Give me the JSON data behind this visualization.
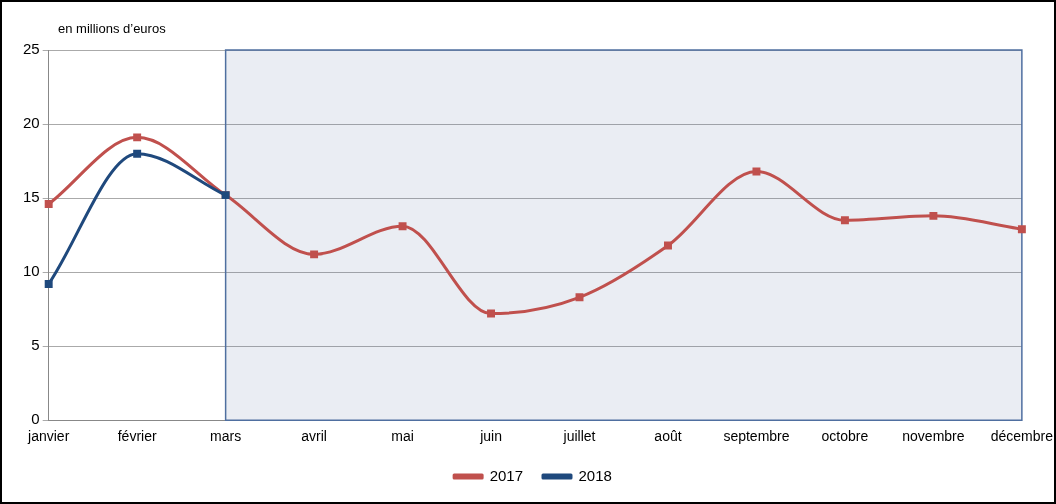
{
  "chart_data": {
    "type": "line",
    "ylabel": "en millions d’euros",
    "categories": [
      "janvier",
      "février",
      "mars",
      "avril",
      "mai",
      "juin",
      "juillet",
      "août",
      "septembre",
      "octobre",
      "novembre",
      "décembre"
    ],
    "series": [
      {
        "name": "2017",
        "color": "#c0504d",
        "values": [
          14.6,
          19.1,
          15.2,
          11.2,
          13.1,
          7.2,
          8.3,
          11.8,
          16.8,
          13.5,
          13.8,
          12.9
        ]
      },
      {
        "name": "2018",
        "color": "#1f497d",
        "values": [
          9.2,
          18.0,
          15.2,
          null,
          null,
          null,
          null,
          null,
          null,
          null,
          null,
          null
        ]
      }
    ],
    "ylim": [
      0,
      25
    ],
    "yticks": [
      0,
      5,
      10,
      15,
      20,
      25
    ],
    "grid": "y",
    "legend": "bottom",
    "marker": "square",
    "line_style": "solid",
    "bands": [
      {
        "axis": "x",
        "from": "mars",
        "to": "décembre",
        "color": "#4f6fa0"
      }
    ]
  }
}
